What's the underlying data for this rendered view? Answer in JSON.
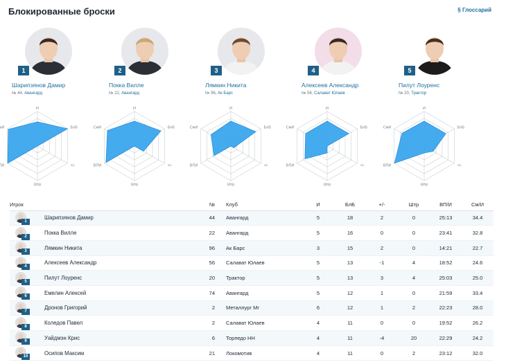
{
  "header": {
    "title": "Блокированные броски",
    "glossary": "§ Глоссарий"
  },
  "top_players": [
    {
      "rank": "1",
      "name": "Шарипзянов Дамир",
      "number": "№ 44,",
      "club": "Авангард",
      "bg": "#e6e8eb",
      "jersey": "#2b2f35",
      "hair": "#3a2a22"
    },
    {
      "rank": "2",
      "name": "Покка Вилле",
      "number": "№ 22,",
      "club": "Авангард",
      "bg": "#e6e8eb",
      "jersey": "#2b2f35",
      "hair": "#c9a778"
    },
    {
      "rank": "3",
      "name": "Лямкин Никита",
      "number": "№ 96,",
      "club": "Ак Барс",
      "bg": "#e6e8eb",
      "jersey": "#f2f2f2",
      "hair": "#6b4a2e"
    },
    {
      "rank": "4",
      "name": "Алексеев Александр",
      "number": "№ 56,",
      "club": "Салават Юлаев",
      "bg": "#f2dde9",
      "jersey": "#f2f2f2",
      "hair": "#3a2a22"
    },
    {
      "rank": "5",
      "name": "Пилут Лоуренс",
      "number": "№ 20,",
      "club": "Трактор",
      "bg": "#ffffff",
      "jersey": "#1c1c1c",
      "hair": "#4a3020"
    }
  ],
  "radar_axes": [
    "И",
    "БлБ",
    "+/-",
    "Штр",
    "ВПИ",
    "СмИ"
  ],
  "radar_values": [
    [
      0.7,
      1.0,
      0.0,
      0.0,
      0.99,
      0.97
    ],
    [
      0.72,
      0.88,
      0.3,
      0.0,
      0.95,
      0.9
    ],
    [
      0.72,
      0.83,
      0.1,
      0.0,
      0.56,
      0.66
    ],
    [
      0.72,
      0.72,
      0.0,
      0.2,
      0.74,
      0.72
    ],
    [
      0.72,
      0.72,
      0.3,
      0.2,
      0.99,
      0.74
    ]
  ],
  "table": {
    "headers": {
      "player": "Игрок",
      "num": "№",
      "club": "Клуб",
      "games": "И",
      "blb": "БлБ",
      "pm": "+/-",
      "pim": "Штр",
      "toi": "ВП/И",
      "shifts": "См/И"
    },
    "rows": [
      {
        "rank": "1",
        "name": "Шарипзянов Дамир",
        "num": "44",
        "club": "Авангард",
        "games": "5",
        "blb": "18",
        "pm": "2",
        "pim": "0",
        "toi": "25:13",
        "shifts": "34.4"
      },
      {
        "rank": "2",
        "name": "Покка Вилле",
        "num": "22",
        "club": "Авангард",
        "games": "5",
        "blb": "16",
        "pm": "0",
        "pim": "0",
        "toi": "23:41",
        "shifts": "32.8"
      },
      {
        "rank": "3",
        "name": "Лямкин Никита",
        "num": "96",
        "club": "Ак Барс",
        "games": "3",
        "blb": "15",
        "pm": "2",
        "pim": "0",
        "toi": "14:21",
        "shifts": "22.7"
      },
      {
        "rank": "4",
        "name": "Алексеев Александр",
        "num": "56",
        "club": "Салават Юлаев",
        "games": "5",
        "blb": "13",
        "pm": "-1",
        "pim": "4",
        "toi": "18:52",
        "shifts": "24.6"
      },
      {
        "rank": "5",
        "name": "Пилут Лоуренс",
        "num": "20",
        "club": "Трактор",
        "games": "5",
        "blb": "13",
        "pm": "3",
        "pim": "4",
        "toi": "25:03",
        "shifts": "25.0"
      },
      {
        "rank": "6",
        "name": "Емелин Алексей",
        "num": "74",
        "club": "Авангард",
        "games": "5",
        "blb": "12",
        "pm": "1",
        "pim": "0",
        "toi": "21:59",
        "shifts": "33.4"
      },
      {
        "rank": "7",
        "name": "Дронов Григорий",
        "num": "2",
        "club": "Металлург Мг",
        "games": "6",
        "blb": "12",
        "pm": "1",
        "pim": "2",
        "toi": "22:23",
        "shifts": "28.0"
      },
      {
        "rank": "8",
        "name": "Коледов Павел",
        "num": "2",
        "club": "Салават Юлаев",
        "games": "4",
        "blb": "11",
        "pm": "0",
        "pim": "0",
        "toi": "19:52",
        "shifts": "26.2"
      },
      {
        "rank": "9",
        "name": "Уайдмэн Крис",
        "num": "6",
        "club": "Торпедо НН",
        "games": "4",
        "blb": "11",
        "pm": "-4",
        "pim": "20",
        "toi": "22:29",
        "shifts": "24.2"
      },
      {
        "rank": "10",
        "name": "Осипов Максим",
        "num": "21",
        "club": "Локомотив",
        "games": "4",
        "blb": "11",
        "pm": "0",
        "pim": "2",
        "toi": "23:12",
        "shifts": "32.0"
      }
    ]
  },
  "colors": {
    "accent": "#1f6f9d",
    "badge": "#1f5f88",
    "radar_fill": "#3ba6ee",
    "row_alt": "#f3f8fb"
  }
}
